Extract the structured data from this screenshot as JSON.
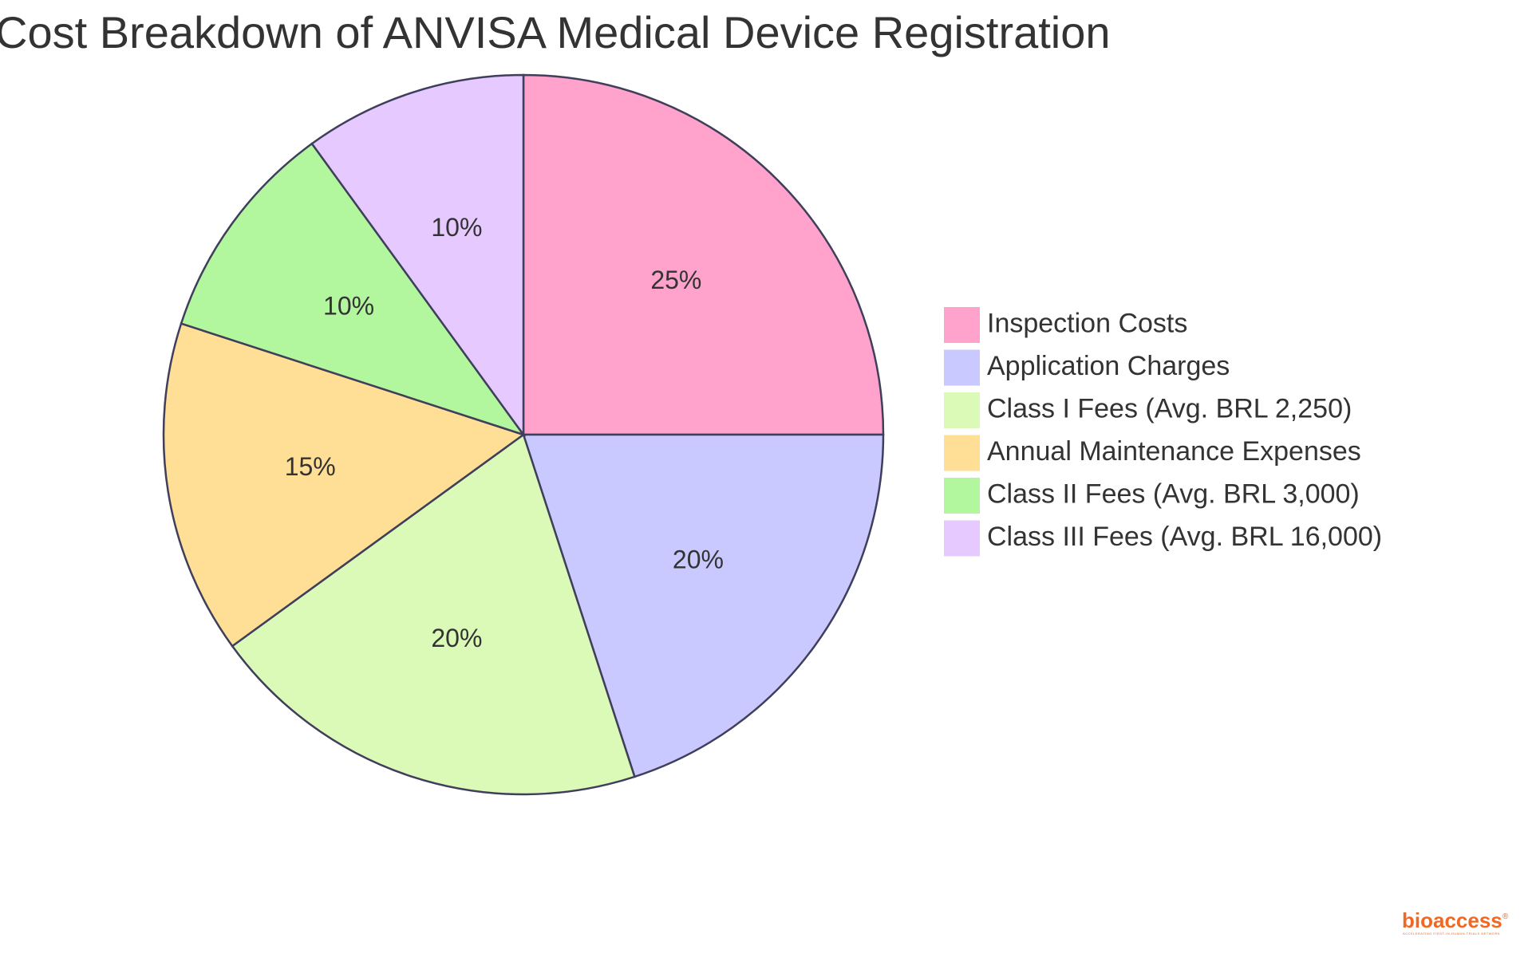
{
  "chart_data": {
    "type": "pie",
    "title": "Cost Breakdown of ANVISA Medical Device Registration",
    "slices": [
      {
        "label": "Inspection Costs",
        "value": 25,
        "display": "25%",
        "color": "#FFA3CC"
      },
      {
        "label": "Application Charges",
        "value": 20,
        "display": "20%",
        "color": "#C9C9FF"
      },
      {
        "label": "Class I Fees (Avg. BRL 2,250)",
        "value": 20,
        "display": "20%",
        "color": "#DBFAB8"
      },
      {
        "label": "Annual Maintenance Expenses",
        "value": 15,
        "display": "15%",
        "color": "#FFDE96"
      },
      {
        "label": "Class II Fees (Avg. BRL 3,000)",
        "value": 10,
        "display": "10%",
        "color": "#B2F79E"
      },
      {
        "label": "Class III Fees (Avg. BRL 16,000)",
        "value": 10,
        "display": "10%",
        "color": "#E6C9FF"
      }
    ],
    "stroke_color": "#3f3f5c",
    "start_angle": "12 o'clock",
    "direction": "clockwise",
    "legend_position": "right"
  },
  "branding": {
    "logo_text": "bioaccess",
    "logo_mark": "®",
    "tagline": "ACCELERATING FIRST-IN-HUMAN TRIALS NETWORK",
    "color": "#f26722"
  }
}
